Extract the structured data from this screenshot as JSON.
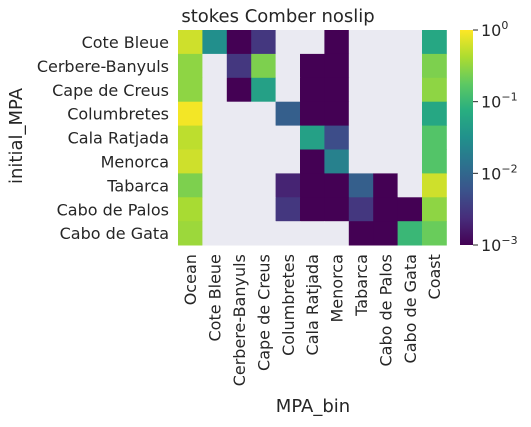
{
  "chart_data": {
    "type": "heatmap",
    "title": "stokes Comber noslip",
    "xlabel": "MPA_bin",
    "ylabel": "initial_MPA",
    "rows": [
      "Cote Bleue",
      "Cerbere-Banyuls",
      "Cape de Creus",
      "Columbretes",
      "Cala Ratjada",
      "Menorca",
      "Tabarca",
      "Cabo de Palos",
      "Cabo de Gata"
    ],
    "columns": [
      "Ocean",
      "Cote Bleue",
      "Cerbere-Banyuls",
      "Cape de Creus",
      "Columbretes",
      "Cala Ratjada",
      "Menorca",
      "Tabarca",
      "Cabo de Palos",
      "Cabo de Gata",
      "Coast"
    ],
    "scale": "log",
    "vmin": 0.001,
    "vmax": 1,
    "missing_color": "#eaeaf2",
    "colormap": "viridis",
    "colorbar_ticks": [
      {
        "value": 1,
        "base": "10",
        "exp": "0"
      },
      {
        "value": 0.1,
        "base": "10",
        "exp": "−1"
      },
      {
        "value": 0.01,
        "base": "10",
        "exp": "−2"
      },
      {
        "value": 0.001,
        "base": "10",
        "exp": "−3"
      }
    ],
    "values": [
      [
        0.6,
        0.03,
        0.001,
        0.003,
        null,
        null,
        0.001,
        null,
        null,
        null,
        0.06
      ],
      [
        0.3,
        null,
        0.003,
        0.25,
        null,
        0.001,
        0.001,
        null,
        null,
        null,
        0.25
      ],
      [
        0.3,
        null,
        0.001,
        0.05,
        null,
        0.001,
        0.001,
        null,
        null,
        null,
        0.3
      ],
      [
        0.9,
        null,
        null,
        null,
        0.008,
        0.001,
        0.001,
        null,
        null,
        null,
        0.06
      ],
      [
        0.5,
        null,
        null,
        null,
        null,
        0.05,
        0.005,
        null,
        null,
        null,
        0.15
      ],
      [
        0.6,
        null,
        null,
        null,
        null,
        0.001,
        0.02,
        null,
        null,
        null,
        0.15
      ],
      [
        0.25,
        null,
        null,
        null,
        0.002,
        0.001,
        0.001,
        0.008,
        0.001,
        null,
        0.6
      ],
      [
        0.4,
        null,
        null,
        null,
        0.003,
        0.001,
        0.001,
        0.003,
        0.001,
        0.001,
        0.3
      ],
      [
        0.35,
        null,
        null,
        null,
        null,
        null,
        null,
        0.001,
        0.001,
        0.1,
        0.2
      ]
    ]
  }
}
